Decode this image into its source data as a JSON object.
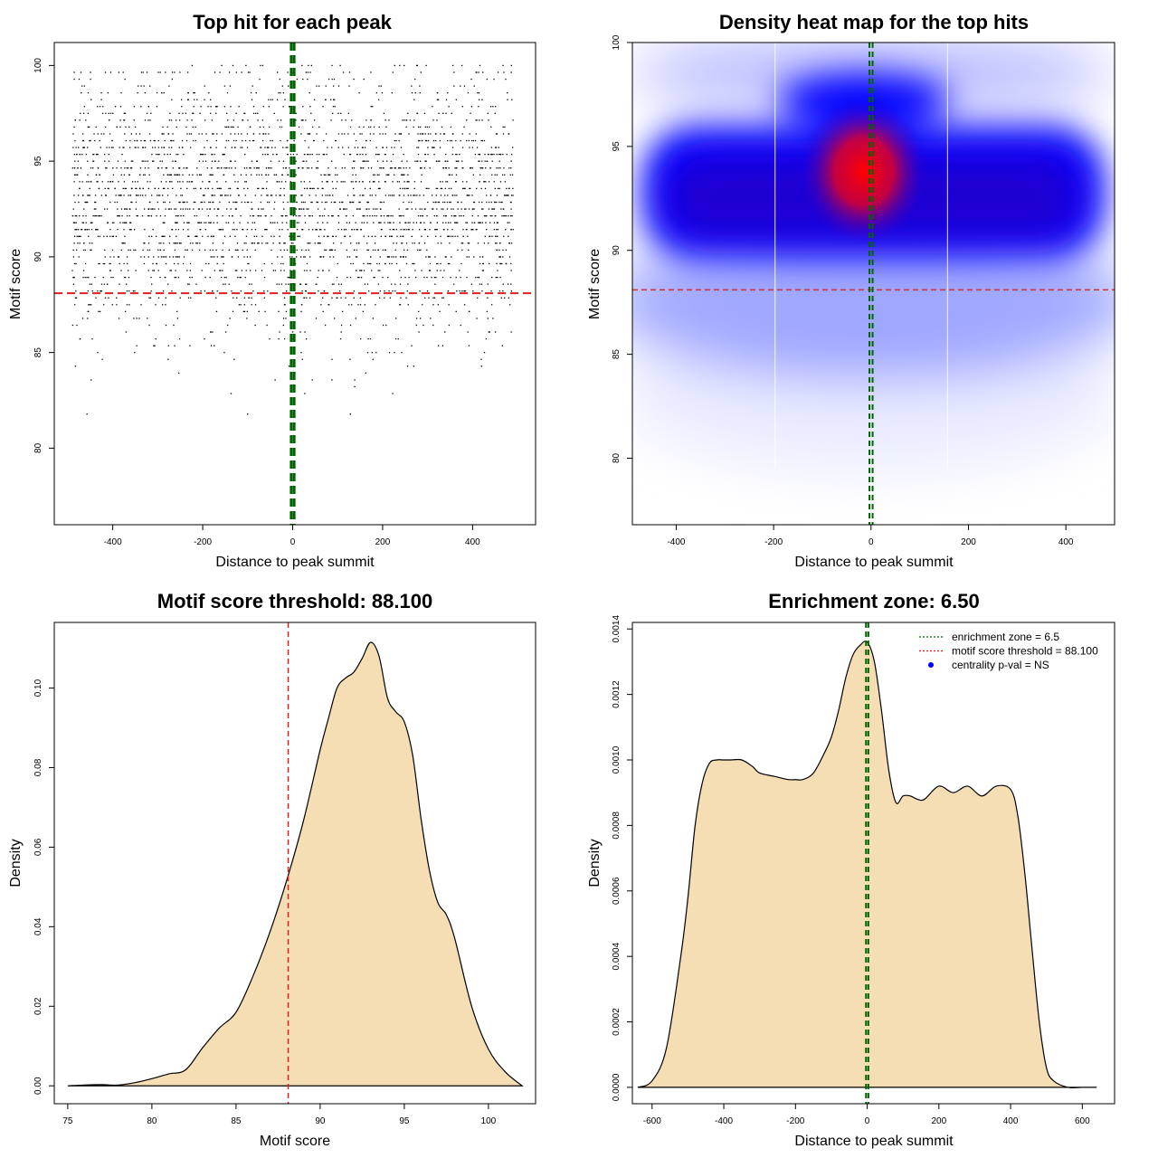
{
  "chart_data": [
    {
      "type": "scatter",
      "title": "Top hit for each peak",
      "xlabel": "Distance to peak summit",
      "ylabel": "Motif score",
      "xlim": [
        -530,
        540
      ],
      "ylim": [
        76,
        101.2
      ],
      "xticks": [
        -400,
        -200,
        0,
        200,
        400
      ],
      "yticks": [
        80,
        85,
        90,
        95,
        100
      ],
      "xtick_labels": [
        "-400",
        "-200",
        "0",
        "200",
        "400"
      ],
      "ytick_labels": [
        "80",
        "85",
        "90",
        "95",
        "100"
      ],
      "threshold_y": 88.1,
      "zone_x": [
        -3.25,
        3.25
      ],
      "zone_color": "#006400",
      "threshold_color": "#e02020",
      "points_color": "#000000",
      "x_range_of_points": [
        -490,
        490
      ],
      "n_points_approx": 3000,
      "score_mode": 92.8
    },
    {
      "type": "heatmap",
      "title": "Density heat map for the top hits",
      "xlabel": "Distance to peak summit",
      "ylabel": "Motif score",
      "xlim": [
        -490,
        500
      ],
      "ylim": [
        76.8,
        100
      ],
      "xticks": [
        -400,
        -200,
        0,
        200,
        400
      ],
      "yticks": [
        80,
        85,
        90,
        95,
        100
      ],
      "xtick_labels": [
        "-400",
        "-200",
        "0",
        "200",
        "400"
      ],
      "ytick_labels": [
        "80",
        "85",
        "90",
        "95",
        "100"
      ],
      "threshold_y": 88.1,
      "zone_x": [
        -3.25,
        3.25
      ],
      "divider_x": [
        -197,
        157
      ],
      "colors": {
        "low": "#ffffff",
        "mid": "#0000ff",
        "high": "#ff0000"
      },
      "hotspot": {
        "x": -15,
        "y": 93.8
      }
    },
    {
      "type": "area",
      "title": "Motif score threshold: 88.100",
      "xlabel": "Motif score",
      "ylabel": "Density",
      "xlim": [
        74.2,
        102.8
      ],
      "ylim": [
        -0.0045,
        0.1165
      ],
      "xticks": [
        75,
        80,
        85,
        90,
        95,
        100
      ],
      "yticks": [
        0.0,
        0.02,
        0.04,
        0.06,
        0.08,
        0.1
      ],
      "xtick_labels": [
        "75",
        "80",
        "85",
        "90",
        "95",
        "100"
      ],
      "ytick_labels": [
        "0.00",
        "0.02",
        "0.04",
        "0.06",
        "0.08",
        "0.10"
      ],
      "threshold_x": 88.1,
      "fill_color": "#f5deb3",
      "x": [
        75,
        76,
        77,
        78,
        79,
        80,
        81,
        82,
        83,
        84,
        85,
        86,
        87,
        88,
        89,
        90,
        90.5,
        91,
        91.5,
        92,
        92.5,
        93,
        93.5,
        94,
        94.5,
        95,
        95.5,
        96,
        96.5,
        97,
        97.5,
        98,
        99,
        100,
        101,
        102
      ],
      "y": [
        0.0,
        0.0002,
        0.0003,
        0.0002,
        0.0008,
        0.0018,
        0.003,
        0.004,
        0.0095,
        0.0145,
        0.0185,
        0.0275,
        0.0385,
        0.0515,
        0.0665,
        0.0845,
        0.0925,
        0.1,
        0.1025,
        0.104,
        0.1075,
        0.1115,
        0.108,
        0.0975,
        0.094,
        0.0915,
        0.083,
        0.067,
        0.054,
        0.046,
        0.043,
        0.037,
        0.02,
        0.0092,
        0.0035,
        0.0
      ]
    },
    {
      "type": "area",
      "title": "Enrichment zone: 6.50",
      "xlabel": "Distance to peak summit",
      "ylabel": "Density",
      "xlim": [
        -655,
        690
      ],
      "ylim": [
        -5e-05,
        0.00142
      ],
      "xticks": [
        -600,
        -400,
        -200,
        0,
        200,
        400,
        600
      ],
      "yticks": [
        0.0,
        0.0002,
        0.0004,
        0.0006,
        0.0008,
        0.001,
        0.0012,
        0.0014
      ],
      "xtick_labels": [
        "-600",
        "-400",
        "-200",
        "0",
        "200",
        "400",
        "600"
      ],
      "ytick_labels": [
        "0.0000",
        "0.0002",
        "0.0004",
        "0.0006",
        "0.0008",
        "0.0010",
        "0.0012",
        "0.0014"
      ],
      "zone_x": [
        -3.25,
        3.25
      ],
      "fill_color": "#f5deb3",
      "x": [
        -640,
        -600,
        -560,
        -520,
        -500,
        -480,
        -460,
        -440,
        -420,
        -400,
        -380,
        -350,
        -320,
        -300,
        -260,
        -220,
        -200,
        -180,
        -150,
        -120,
        -100,
        -80,
        -60,
        -40,
        -20,
        0,
        20,
        40,
        60,
        80,
        100,
        120,
        140,
        160,
        200,
        240,
        280,
        320,
        360,
        400,
        420,
        440,
        460,
        480,
        500,
        520,
        560,
        600,
        640
      ],
      "y": [
        0.0,
        2e-05,
        0.00012,
        0.0004,
        0.00058,
        0.0008,
        0.00093,
        0.00099,
        0.001,
        0.001,
        0.001,
        0.001,
        0.00098,
        0.00096,
        0.00095,
        0.00094,
        0.00094,
        0.00094,
        0.00096,
        0.00102,
        0.00107,
        0.00115,
        0.00125,
        0.00132,
        0.00135,
        0.00136,
        0.0013,
        0.00115,
        0.00097,
        0.00087,
        0.00089,
        0.00089,
        0.00088,
        0.00088,
        0.00092,
        0.0009,
        0.00092,
        0.00089,
        0.00092,
        0.00091,
        0.00083,
        0.00065,
        0.00042,
        0.0002,
        6e-05,
        2e-05,
        0.0,
        0.0,
        0.0
      ],
      "legend": {
        "position": "top-right",
        "entries": [
          {
            "label": "enrichment zone = 6.5",
            "color": "#006400",
            "style": "dotted-line"
          },
          {
            "label": "motif score threshold = 88.100",
            "color": "#e02020",
            "style": "dotted-line"
          },
          {
            "label": "centrality p-val = NS",
            "color": "#0000ff",
            "style": "point"
          }
        ]
      }
    }
  ]
}
